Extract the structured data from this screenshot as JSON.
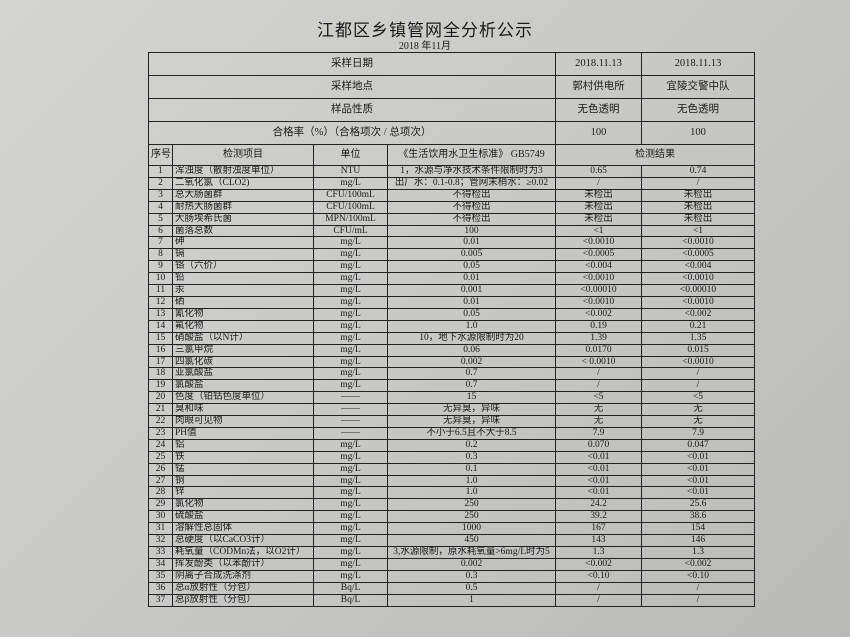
{
  "title": "江都区乡镇管网全分析公示",
  "subtitle": "2018 年11月",
  "meta_rows": [
    {
      "label": "采样日期",
      "values": [
        "2018.11.13",
        "2018.11.13"
      ]
    },
    {
      "label": "采样地点",
      "values": [
        "郭村供电所",
        "宜陵交警中队"
      ]
    },
    {
      "label": "样品性质",
      "values": [
        "无色透明",
        "无色透明"
      ]
    },
    {
      "label": "合格率（%）（合格项次 / 总项次）",
      "values": [
        "100",
        "100"
      ]
    }
  ],
  "columns": {
    "no": "序号",
    "item": "检测项目",
    "unit": "单位",
    "standard": "《生活饮用水卫生标准》 GB5749",
    "result": "检测结果"
  },
  "rows": [
    [
      "1",
      "浑浊度（散射浊度单位）",
      "NTU",
      "1，水源与净水技术条件限制时为3",
      "0.65",
      "0.74"
    ],
    [
      "2",
      "二氧化氯（CLO2)",
      "mg/L",
      "出厂水：0.1-0.8；管网末梢水：≥0.02",
      "/",
      "/"
    ],
    [
      "3",
      "总大肠菌群",
      "CFU/100mL",
      "不得检出",
      "未检出",
      "未检出"
    ],
    [
      "4",
      "耐热大肠菌群",
      "CFU/100mL",
      "不得检出",
      "未检出",
      "未检出"
    ],
    [
      "5",
      "大肠埃希氏菌",
      "MPN/100mL",
      "不得检出",
      "未检出",
      "未检出"
    ],
    [
      "6",
      "菌落总数",
      "CFU/mL",
      "100",
      "<1",
      "<1"
    ],
    [
      "7",
      "砷",
      "mg/L",
      "0.01",
      "<0.0010",
      "<0.0010"
    ],
    [
      "8",
      "镉",
      "mg/L",
      "0.005",
      "<0.0005",
      "<0.0005"
    ],
    [
      "9",
      "铬（六价）",
      "mg/L",
      "0.05",
      "<0.004",
      "<0.004"
    ],
    [
      "10",
      "铅",
      "mg/L",
      "0.01",
      "<0.0010",
      "<0.0010"
    ],
    [
      "11",
      "汞",
      "mg/L",
      "0.001",
      "<0.00010",
      "<0.00010"
    ],
    [
      "12",
      "硒",
      "mg/L",
      "0.01",
      "<0.0010",
      "<0.0010"
    ],
    [
      "13",
      "氰化物",
      "mg/L",
      "0.05",
      "<0.002",
      "<0.002"
    ],
    [
      "14",
      "氟化物",
      "mg/L",
      "1.0",
      "0.19",
      "0.21"
    ],
    [
      "15",
      "硝酸盐（以N计）",
      "mg/L",
      "10，地下水源限制时为20",
      "1.39",
      "1.35"
    ],
    [
      "16",
      "三氯甲烷",
      "mg/L",
      "0.06",
      "0.0170",
      "0.015"
    ],
    [
      "17",
      "四氯化碳",
      "mg/L",
      "0.002",
      "< 0.0010",
      "<0.0010"
    ],
    [
      "18",
      "亚氯酸盐",
      "mg/L",
      "0.7",
      "/",
      "/"
    ],
    [
      "19",
      "氯酸盐",
      "mg/L",
      "0.7",
      "/",
      "/"
    ],
    [
      "20",
      "色度（铂钴色度单位）",
      "——",
      "15",
      "<5",
      "<5"
    ],
    [
      "21",
      "臭和味",
      "——",
      "无异臭，异味",
      "无",
      "无"
    ],
    [
      "22",
      "肉眼可见物",
      "——",
      "无异臭，异味",
      "无",
      "无"
    ],
    [
      "23",
      "PH值",
      "——",
      "不小于6.5且不大于8.5",
      "7.9",
      "7.9"
    ],
    [
      "24",
      "铝",
      "mg/L",
      "0.2",
      "0.070",
      "0.047"
    ],
    [
      "25",
      "铁",
      "mg/L",
      "0.3",
      "<0.01",
      "<0.01"
    ],
    [
      "26",
      "锰",
      "mg/L",
      "0.1",
      "<0.01",
      "<0.01"
    ],
    [
      "27",
      "铜",
      "mg/L",
      "1.0",
      "<0.01",
      "<0.01"
    ],
    [
      "28",
      "锌",
      "mg/L",
      "1.0",
      "<0.01",
      "<0.01"
    ],
    [
      "29",
      "氯化物",
      "mg/L",
      "250",
      "24.2",
      "25.6"
    ],
    [
      "30",
      "硫酸盐",
      "mg/L",
      "250",
      "39.2",
      "38.6"
    ],
    [
      "31",
      "溶解性总固体",
      "mg/L",
      "1000",
      "167",
      "154"
    ],
    [
      "32",
      "总硬度（以CaCO3计）",
      "mg/L",
      "450",
      "143",
      "146"
    ],
    [
      "33",
      "耗氧量（CODMn法，以O2计）",
      "mg/L",
      "3,水源限制，原水耗氧量>6mg/L时为5",
      "1.3",
      "1.3"
    ],
    [
      "34",
      "挥发酚类（以苯酚计）",
      "mg/L",
      "0.002",
      "<0.002",
      "<0.002"
    ],
    [
      "35",
      "阴离子合成洗涤剂",
      "mg/L",
      "0.3",
      "<0.10",
      "<0.10"
    ],
    [
      "36",
      "总α放射性（分包）",
      "Bq/L",
      "0.5",
      "/",
      "/"
    ],
    [
      "37",
      "总β放射性（分包）",
      "Bq/L",
      "1",
      "/",
      "/"
    ]
  ]
}
